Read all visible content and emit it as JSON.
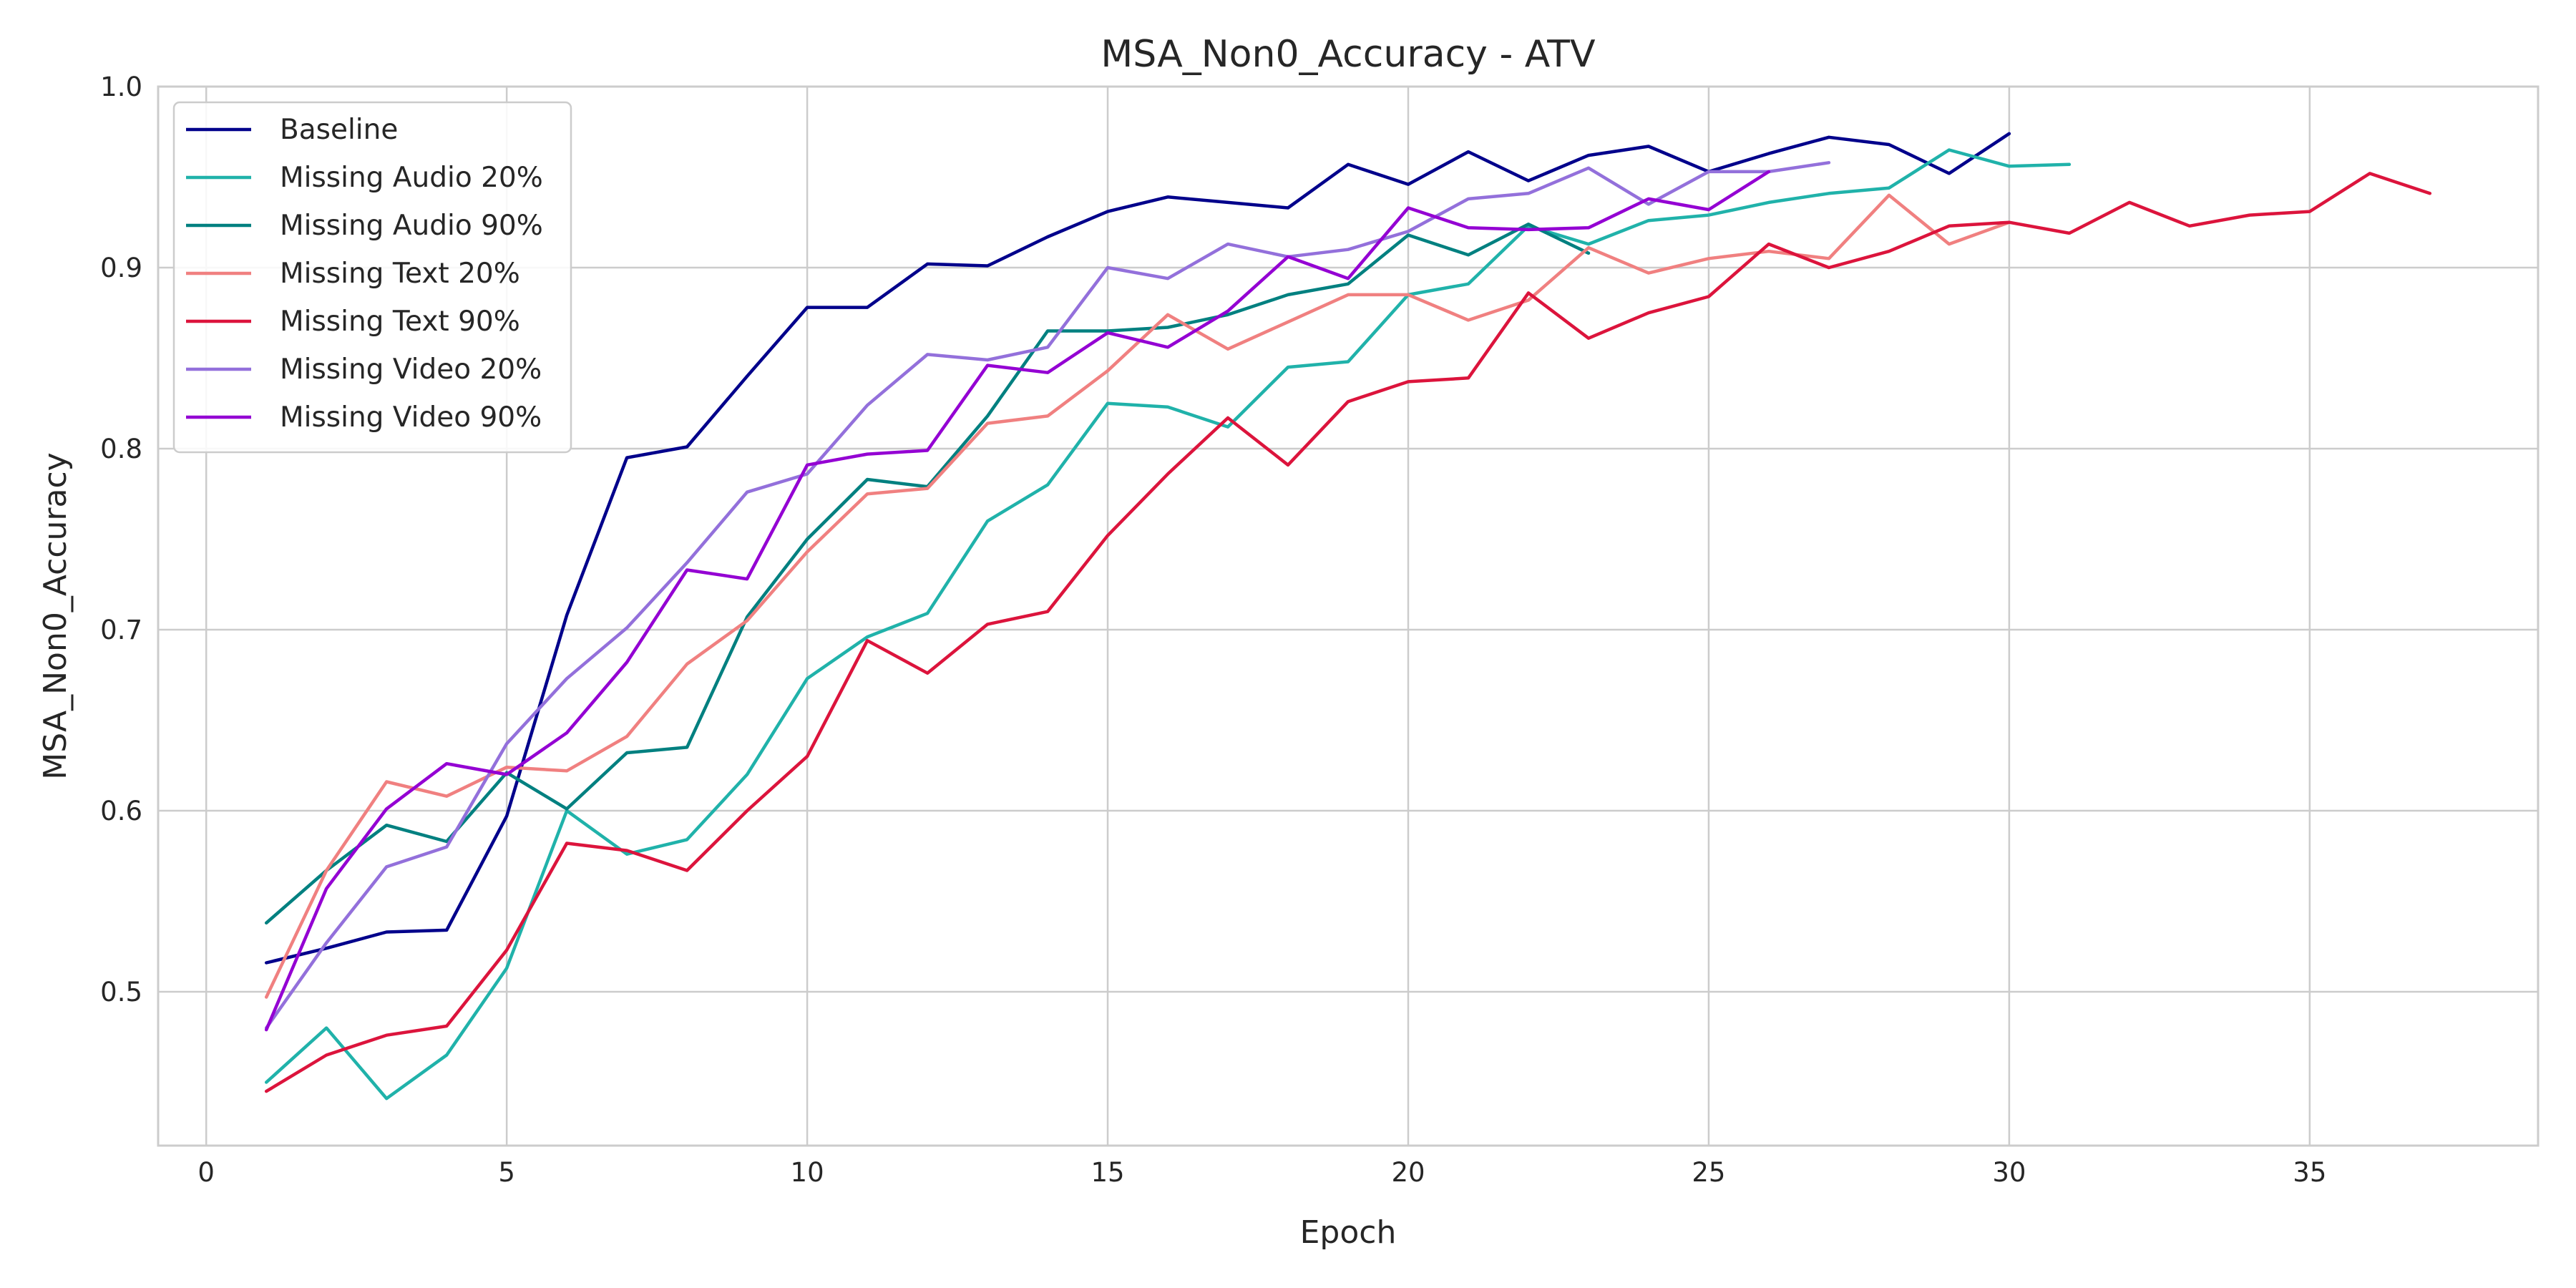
{
  "chart_data": {
    "type": "line",
    "title": "MSA_Non0_Accuracy - ATV",
    "xlabel": "Epoch",
    "ylabel": "MSA_Non0_Accuracy",
    "xlim": [
      -0.8,
      38.8
    ],
    "ylim": [
      0.415,
      1.0
    ],
    "xticks": [
      0,
      5,
      10,
      15,
      20,
      25,
      30,
      35
    ],
    "yticks": [
      0.5,
      0.6,
      0.7,
      0.8,
      0.9,
      1.0
    ],
    "xtick_labels": [
      "0",
      "5",
      "10",
      "15",
      "20",
      "25",
      "30",
      "35"
    ],
    "ytick_labels": [
      "0.5",
      "0.6",
      "0.7",
      "0.8",
      "0.9",
      "1.0"
    ],
    "grid": true,
    "legend_position": "top-left",
    "series": [
      {
        "name": "Baseline",
        "color": "#00008b",
        "x": [
          1,
          2,
          3,
          4,
          5,
          6,
          7,
          8,
          9,
          10,
          11,
          12,
          13,
          14,
          15,
          16,
          17,
          18,
          19,
          20,
          21,
          22,
          23,
          24,
          25,
          26,
          27,
          28,
          29,
          30
        ],
        "y": [
          0.516,
          0.524,
          0.533,
          0.534,
          0.597,
          0.708,
          0.795,
          0.801,
          0.84,
          0.878,
          0.878,
          0.902,
          0.901,
          0.917,
          0.931,
          0.939,
          0.936,
          0.933,
          0.957,
          0.946,
          0.964,
          0.948,
          0.962,
          0.967,
          0.953,
          0.963,
          0.972,
          0.968,
          0.952,
          0.974
        ]
      },
      {
        "name": "Missing Audio 20%",
        "color": "#20b2aa",
        "x": [
          1,
          2,
          3,
          4,
          5,
          6,
          7,
          8,
          9,
          10,
          11,
          12,
          13,
          14,
          15,
          16,
          17,
          18,
          19,
          20,
          21,
          22,
          23,
          24,
          25,
          26,
          27,
          28,
          29,
          30,
          31
        ],
        "y": [
          0.45,
          0.48,
          0.441,
          0.465,
          0.513,
          0.6,
          0.576,
          0.584,
          0.62,
          0.673,
          0.696,
          0.709,
          0.76,
          0.78,
          0.825,
          0.823,
          0.812,
          0.845,
          0.848,
          0.885,
          0.891,
          0.923,
          0.913,
          0.926,
          0.929,
          0.936,
          0.941,
          0.944,
          0.965,
          0.956,
          0.957
        ]
      },
      {
        "name": "Missing Audio 90%",
        "color": "#008080",
        "x": [
          1,
          2,
          3,
          4,
          5,
          6,
          7,
          8,
          9,
          10,
          11,
          12,
          13,
          14,
          15,
          16,
          17,
          18,
          19,
          20,
          21,
          22,
          23
        ],
        "y": [
          0.538,
          0.567,
          0.592,
          0.583,
          0.621,
          0.601,
          0.632,
          0.635,
          0.707,
          0.75,
          0.783,
          0.779,
          0.818,
          0.865,
          0.865,
          0.867,
          0.874,
          0.885,
          0.891,
          0.918,
          0.907,
          0.924,
          0.908
        ]
      },
      {
        "name": "Missing Text 20%",
        "color": "#f08080",
        "x": [
          1,
          2,
          3,
          4,
          5,
          6,
          7,
          8,
          9,
          10,
          11,
          12,
          13,
          14,
          15,
          16,
          17,
          18,
          19,
          20,
          21,
          22,
          23,
          24,
          25,
          26,
          27,
          28,
          29,
          30
        ],
        "y": [
          0.497,
          0.567,
          0.616,
          0.608,
          0.624,
          0.622,
          0.641,
          0.681,
          0.705,
          0.743,
          0.775,
          0.778,
          0.814,
          0.818,
          0.843,
          0.874,
          0.855,
          0.87,
          0.885,
          0.885,
          0.871,
          0.882,
          0.911,
          0.897,
          0.905,
          0.909,
          0.905,
          0.94,
          0.913,
          0.925
        ]
      },
      {
        "name": "Missing Text 90%",
        "color": "#dc143c",
        "x": [
          1,
          2,
          3,
          4,
          5,
          6,
          7,
          8,
          9,
          10,
          11,
          12,
          13,
          14,
          15,
          16,
          17,
          18,
          19,
          20,
          21,
          22,
          23,
          24,
          25,
          26,
          27,
          28,
          29,
          30,
          31,
          32,
          33,
          34,
          35,
          36,
          37
        ],
        "y": [
          0.445,
          0.465,
          0.476,
          0.481,
          0.523,
          0.582,
          0.578,
          0.567,
          0.6,
          0.63,
          0.694,
          0.676,
          0.703,
          0.71,
          0.752,
          0.786,
          0.817,
          0.791,
          0.826,
          0.837,
          0.839,
          0.886,
          0.861,
          0.875,
          0.884,
          0.913,
          0.9,
          0.909,
          0.923,
          0.925,
          0.919,
          0.936,
          0.923,
          0.929,
          0.931,
          0.952,
          0.941
        ]
      },
      {
        "name": "Missing Video 20%",
        "color": "#9370db",
        "x": [
          1,
          2,
          3,
          4,
          5,
          6,
          7,
          8,
          9,
          10,
          11,
          12,
          13,
          14,
          15,
          16,
          17,
          18,
          19,
          20,
          21,
          22,
          23,
          24,
          25,
          26,
          27
        ],
        "y": [
          0.48,
          0.527,
          0.569,
          0.58,
          0.637,
          0.673,
          0.701,
          0.737,
          0.776,
          0.786,
          0.824,
          0.852,
          0.849,
          0.856,
          0.9,
          0.894,
          0.913,
          0.906,
          0.91,
          0.92,
          0.938,
          0.941,
          0.955,
          0.935,
          0.953,
          0.953,
          0.958
        ]
      },
      {
        "name": "Missing Video 90%",
        "color": "#9400d3",
        "x": [
          1,
          2,
          3,
          4,
          5,
          6,
          7,
          8,
          9,
          10,
          11,
          12,
          13,
          14,
          15,
          16,
          17,
          18,
          19,
          20,
          21,
          22,
          23,
          24,
          25,
          26
        ],
        "y": [
          0.479,
          0.557,
          0.601,
          0.626,
          0.62,
          0.643,
          0.682,
          0.733,
          0.728,
          0.791,
          0.797,
          0.799,
          0.846,
          0.842,
          0.864,
          0.856,
          0.876,
          0.906,
          0.894,
          0.933,
          0.922,
          0.921,
          0.922,
          0.938,
          0.932,
          0.953
        ]
      }
    ]
  }
}
